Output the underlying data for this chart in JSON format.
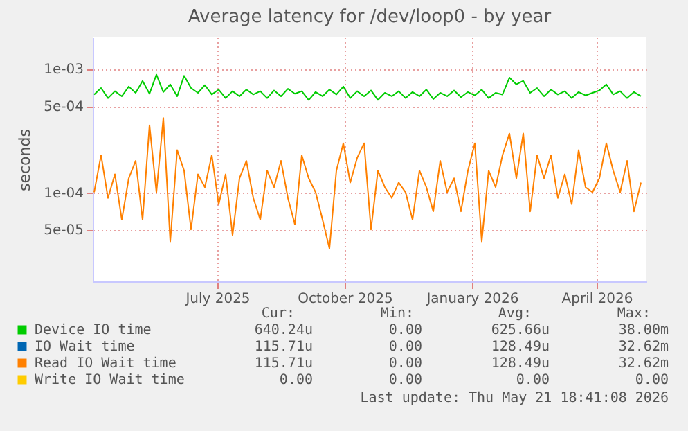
{
  "chart_data": {
    "type": "line",
    "title": "Average latency for /dev/loop0 - by year",
    "ylabel": "seconds",
    "log": "y",
    "grid": true,
    "legend": "bottom left",
    "line_style": "solid",
    "marker": "none",
    "x": [
      "2025-04-18",
      "2025-04-23",
      "2025-04-28",
      "2025-05-03",
      "2025-05-08",
      "2025-05-13",
      "2025-05-18",
      "2025-05-23",
      "2025-05-28",
      "2025-06-02",
      "2025-06-07",
      "2025-06-12",
      "2025-06-17",
      "2025-06-22",
      "2025-06-27",
      "2025-07-02",
      "2025-07-07",
      "2025-07-12",
      "2025-07-17",
      "2025-07-22",
      "2025-07-27",
      "2025-08-01",
      "2025-08-06",
      "2025-08-11",
      "2025-08-16",
      "2025-08-21",
      "2025-08-26",
      "2025-08-31",
      "2025-09-05",
      "2025-09-10",
      "2025-09-15",
      "2025-09-20",
      "2025-09-25",
      "2025-09-30",
      "2025-10-05",
      "2025-10-10",
      "2025-10-15",
      "2025-10-20",
      "2025-10-25",
      "2025-10-30",
      "2025-11-04",
      "2025-11-09",
      "2025-11-14",
      "2025-11-19",
      "2025-11-24",
      "2025-11-29",
      "2025-12-04",
      "2025-12-09",
      "2025-12-14",
      "2025-12-19",
      "2025-12-24",
      "2025-12-29",
      "2026-01-03",
      "2026-01-08",
      "2026-01-13",
      "2026-01-18",
      "2026-01-23",
      "2026-01-28",
      "2026-02-02",
      "2026-02-07",
      "2026-02-12",
      "2026-02-17",
      "2026-02-22",
      "2026-02-27",
      "2026-03-04",
      "2026-03-09",
      "2026-03-14",
      "2026-03-19",
      "2026-03-24",
      "2026-03-29",
      "2026-04-03",
      "2026-04-08",
      "2026-04-13",
      "2026-04-18",
      "2026-04-23",
      "2026-04-28",
      "2026-05-03",
      "2026-05-08",
      "2026-05-13",
      "2026-05-18"
    ],
    "xlim": [
      "2025-04-17",
      "2026-05-22"
    ],
    "xticks": [
      {
        "value": "2025-07-16",
        "label": "July 2025"
      },
      {
        "value": "2025-10-16",
        "label": "October 2025"
      },
      {
        "value": "2026-01-16",
        "label": "January 2026"
      },
      {
        "value": "2026-04-16",
        "label": "April 2026"
      }
    ],
    "ylim": [
      1.9e-05,
      0.0018
    ],
    "yticks": [
      {
        "value": 5e-05,
        "label": "5e-05"
      },
      {
        "value": 0.0001,
        "label": "1e-04"
      },
      {
        "value": 0.0005,
        "label": "5e-04"
      },
      {
        "value": 0.001,
        "label": "1e-03"
      }
    ],
    "series": [
      {
        "name": "Device IO time",
        "color": "#00cc00",
        "values": [
          0.00062,
          0.0007,
          0.00058,
          0.00066,
          0.0006,
          0.00072,
          0.00064,
          0.0008,
          0.00063,
          0.0009,
          0.00065,
          0.00075,
          0.0006,
          0.00088,
          0.0007,
          0.00064,
          0.00074,
          0.00062,
          0.00068,
          0.00058,
          0.00066,
          0.0006,
          0.00068,
          0.00062,
          0.00066,
          0.00058,
          0.00067,
          0.0006,
          0.00069,
          0.00063,
          0.00066,
          0.00056,
          0.00065,
          0.0006,
          0.00068,
          0.00062,
          0.00072,
          0.00058,
          0.00066,
          0.0006,
          0.00067,
          0.00056,
          0.00064,
          0.0006,
          0.00066,
          0.00058,
          0.00065,
          0.0006,
          0.00068,
          0.00057,
          0.00064,
          0.0006,
          0.00067,
          0.00059,
          0.00065,
          0.00061,
          0.00068,
          0.00058,
          0.00064,
          0.00062,
          0.00085,
          0.00075,
          0.0008,
          0.00064,
          0.0007,
          0.0006,
          0.00068,
          0.00062,
          0.00066,
          0.00058,
          0.00065,
          0.00061,
          0.00064,
          0.00067,
          0.00075,
          0.00062,
          0.00066,
          0.00058,
          0.00065,
          0.0006
        ]
      },
      {
        "name": "IO Wait time",
        "color": "#0066b3",
        "values": [
          null,
          null,
          null,
          null,
          null,
          null,
          null,
          null,
          null,
          null,
          null,
          null,
          null,
          null,
          null,
          null,
          null,
          null,
          null,
          null,
          null,
          null,
          null,
          null,
          null,
          null,
          null,
          null,
          null,
          null,
          null,
          null,
          null,
          null,
          null,
          null,
          null,
          null,
          null,
          null,
          null,
          null,
          null,
          null,
          null,
          null,
          null,
          null,
          null,
          null,
          null,
          null,
          null,
          null,
          null,
          null,
          null,
          null,
          null,
          null,
          null,
          null,
          null,
          null,
          null,
          null,
          null,
          null,
          null,
          null,
          null,
          null,
          null,
          null,
          null,
          null,
          null,
          null,
          null,
          null
        ]
      },
      {
        "name": "Read IO Wait time",
        "color": "#ff8000",
        "values": [
          0.0001,
          0.0002,
          9e-05,
          0.00014,
          6e-05,
          0.00013,
          0.00018,
          6e-05,
          0.00035,
          0.0001,
          0.0004,
          4e-05,
          0.00022,
          0.00015,
          5e-05,
          0.00014,
          0.00011,
          0.0002,
          8e-05,
          0.00014,
          4.5e-05,
          0.00013,
          0.00018,
          9e-05,
          6e-05,
          0.00015,
          0.00011,
          0.00018,
          9e-05,
          5.5e-05,
          0.0002,
          0.00013,
          0.0001,
          6e-05,
          3.5e-05,
          0.00015,
          0.00025,
          0.00012,
          0.00019,
          0.00025,
          5e-05,
          0.00015,
          0.00011,
          9e-05,
          0.00012,
          0.0001,
          6e-05,
          0.00015,
          0.00011,
          7e-05,
          0.00018,
          0.0001,
          0.00013,
          7e-05,
          0.00015,
          0.00025,
          4e-05,
          0.00015,
          0.00011,
          0.0002,
          0.0003,
          0.00013,
          0.0003,
          7e-05,
          0.0002,
          0.00013,
          0.0002,
          9e-05,
          0.00014,
          8e-05,
          0.00022,
          0.00011,
          0.0001,
          0.00013,
          0.00025,
          0.00015,
          0.0001,
          0.00018,
          7e-05,
          0.00012
        ]
      },
      {
        "name": "Write IO Wait time",
        "color": "#ffcc00",
        "values": [
          null,
          null,
          null,
          null,
          null,
          null,
          null,
          null,
          null,
          null,
          null,
          null,
          null,
          null,
          null,
          null,
          null,
          null,
          null,
          null,
          null,
          null,
          null,
          null,
          null,
          null,
          null,
          null,
          null,
          null,
          null,
          null,
          null,
          null,
          null,
          null,
          null,
          null,
          null,
          null,
          null,
          null,
          null,
          null,
          null,
          null,
          null,
          null,
          null,
          null,
          null,
          null,
          null,
          null,
          null,
          null,
          null,
          null,
          null,
          null,
          null,
          null,
          null,
          null,
          null,
          null,
          null,
          null,
          null,
          null,
          null,
          null,
          null,
          null,
          null,
          null,
          null,
          null,
          null,
          null
        ]
      }
    ],
    "annotations": [
      "Cur:",
      "Min:",
      "Avg:",
      "Max:",
      "640.24u",
      "0.00",
      "625.66u",
      "38.00m",
      "115.71u",
      "0.00",
      "128.49u",
      "32.62m",
      "115.71u",
      "0.00",
      "128.49u",
      "32.62m",
      "0.00",
      "0.00",
      "0.00",
      "0.00",
      "Last update: Thu May 21 18:41:08 2026"
    ]
  }
}
